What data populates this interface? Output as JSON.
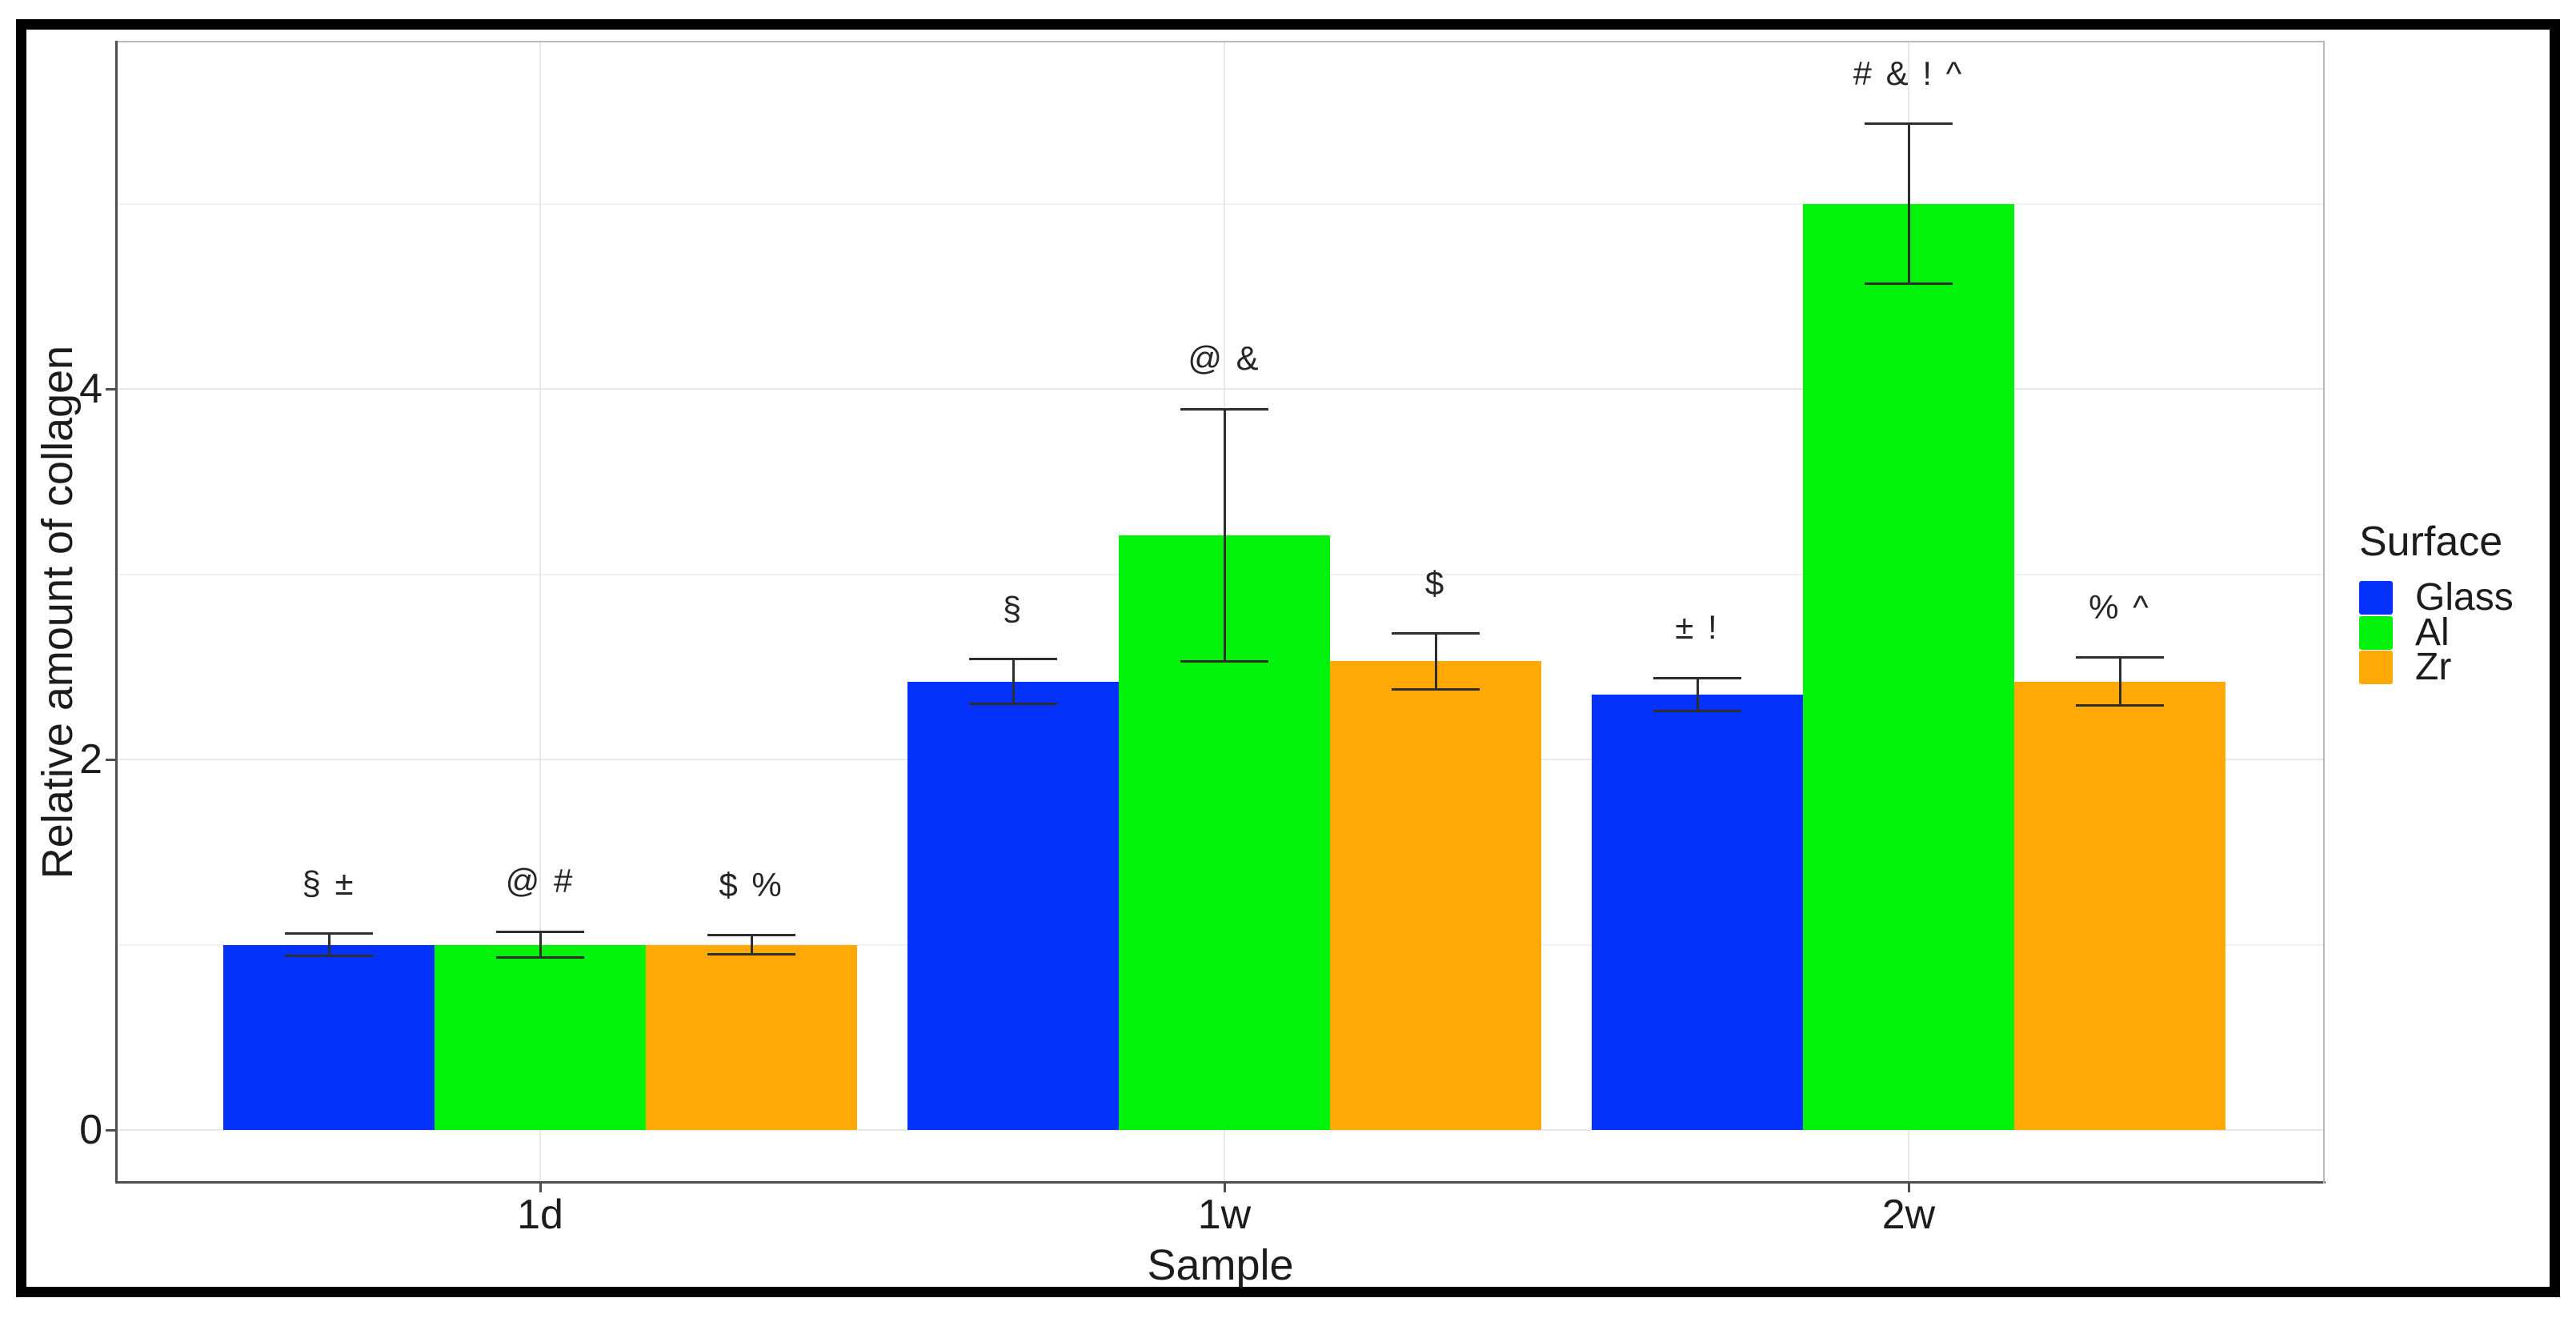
{
  "figure": {
    "frame_color": "#000000",
    "background": "#ffffff"
  },
  "chart_data": {
    "type": "bar",
    "title": "",
    "xlabel": "Sample",
    "ylabel": "Relative amount of collagen",
    "categories": [
      "1d",
      "1w",
      "2w"
    ],
    "y_ticks": [
      "0",
      "2",
      "4"
    ],
    "y_tick_values": [
      0,
      2,
      4
    ],
    "y_minor_values": [
      1,
      3,
      5
    ],
    "ylim": [
      -0.28,
      5.87
    ],
    "grid": "on",
    "legend_position": "right",
    "legend_title": "Surface",
    "series": [
      {
        "name": "Glass",
        "color": "#0432FB",
        "values": [
          1.0,
          2.42,
          2.35
        ],
        "errors": [
          0.06,
          0.12,
          0.09
        ]
      },
      {
        "name": "Al",
        "color": "#03F20C",
        "values": [
          1.0,
          3.21,
          5.0
        ],
        "errors": [
          0.07,
          0.68,
          0.43
        ]
      },
      {
        "name": "Zr",
        "color": "#FFA906",
        "values": [
          1.0,
          2.53,
          2.42
        ],
        "errors": [
          0.05,
          0.15,
          0.13
        ]
      }
    ],
    "annotations": [
      [
        "§ ±",
        "@ #",
        "$ %"
      ],
      [
        "§",
        "@ &",
        "$"
      ],
      [
        "± !",
        "# & ! ^",
        "% ^"
      ]
    ],
    "error_bar_color": "#2e2e2e",
    "gridline_color": "#e8e8e8",
    "axis_line_color": "#4f4f4f"
  }
}
